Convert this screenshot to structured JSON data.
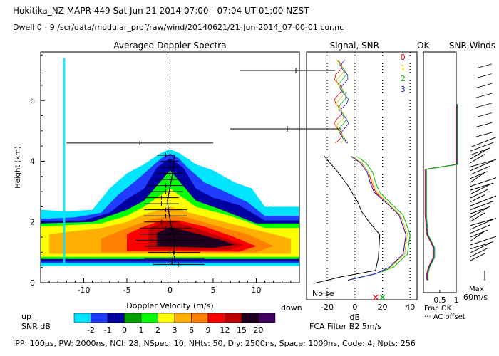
{
  "header": {
    "title": "Hokitika_NZ   MAPR-449   Sat Jun 21 2014 07:00 - 07:04 UT 01:00 NZST",
    "path": "Dwell   0 - 9   /scr/data/modular_prof/raw/wind/20140621/21-Jun-2014_07-00-01.cor.nc"
  },
  "footer": {
    "params": "IPP: 100µs,   PW: 2000ns,   NCI: 28,   NSpec: 10,   NHts: 50,   Dly: 2500ns,   Space: 1000ns,   Code: 4,   Npts: 256"
  },
  "labels": {
    "snr_db": "SNR dB",
    "up": "up",
    "down": "down",
    "fca": "FCA Filter B2   5m/s",
    "noise": "Noise",
    "frac_ok": "Frac OK",
    "ac_offset": "··· AC offset",
    "max": "Max",
    "max_val": "60m/s",
    "ok": "OK"
  },
  "colors": {
    "snr_scale": [
      "#00e5ff",
      "#1f3cff",
      "#0000a0",
      "#00a000",
      "#00ff00",
      "#ffff00",
      "#ffb000",
      "#ff8000",
      "#ff0000",
      "#c00000",
      "#200020",
      "#400060"
    ],
    "channels": [
      "#ff0000",
      "#e0c000",
      "#00c000",
      "#2020d0"
    ]
  },
  "chart_data": [
    {
      "type": "heatmap",
      "title": "Averaged Doppler Spectra",
      "xlabel": "Doppler Velocity (m/s)",
      "ylabel": "Height (km)",
      "xlim": [
        -15,
        15
      ],
      "ylim": [
        0,
        7.6
      ],
      "xticks": [
        -10,
        -5,
        0,
        5,
        10
      ],
      "yticks": [
        0,
        2,
        4,
        6
      ],
      "colorbar": {
        "label": "SNR dB",
        "ticks": [
          -2,
          -1,
          0,
          1,
          2,
          3,
          6,
          9,
          12,
          15,
          20
        ]
      },
      "contours": [
        {
          "level": -2,
          "pts": [
            [
              -15,
              0.55
            ],
            [
              -15,
              2.4
            ],
            [
              -12,
              2.35
            ],
            [
              -9,
              2.4
            ],
            [
              -7,
              3.1
            ],
            [
              -5,
              3.6
            ],
            [
              -3,
              3.9
            ],
            [
              -1.2,
              4.25
            ],
            [
              0,
              4.4
            ],
            [
              1.2,
              4.25
            ],
            [
              3,
              3.9
            ],
            [
              5,
              3.7
            ],
            [
              7.5,
              3.3
            ],
            [
              9.5,
              3.1
            ],
            [
              11,
              2.5
            ],
            [
              15,
              2.5
            ],
            [
              15,
              0.55
            ]
          ]
        },
        {
          "level": -1,
          "pts": [
            [
              -15,
              0.65
            ],
            [
              -15,
              2.1
            ],
            [
              -11,
              2.15
            ],
            [
              -8,
              2.3
            ],
            [
              -6,
              2.9
            ],
            [
              -4,
              3.35
            ],
            [
              -2,
              3.85
            ],
            [
              -1,
              4.1
            ],
            [
              0,
              4.25
            ],
            [
              1,
              4.1
            ],
            [
              2,
              3.8
            ],
            [
              4,
              3.3
            ],
            [
              6,
              3.05
            ],
            [
              9,
              2.65
            ],
            [
              11,
              2.2
            ],
            [
              15,
              2.2
            ],
            [
              15,
              0.65
            ]
          ]
        },
        {
          "level": 0,
          "pts": [
            [
              -15,
              0.7
            ],
            [
              -15,
              2.02
            ],
            [
              -10,
              2.05
            ],
            [
              -7,
              2.3
            ],
            [
              -5,
              2.75
            ],
            [
              -3,
              3.1
            ],
            [
              -1.5,
              3.8
            ],
            [
              0,
              4.1
            ],
            [
              1.5,
              3.8
            ],
            [
              3,
              3.1
            ],
            [
              5,
              2.8
            ],
            [
              8,
              2.55
            ],
            [
              11,
              2.05
            ],
            [
              15,
              2.05
            ],
            [
              15,
              0.7
            ]
          ]
        },
        {
          "level": 2,
          "pts": [
            [
              -15,
              0.78
            ],
            [
              -15,
              1.95
            ],
            [
              -9,
              2.0
            ],
            [
              -5,
              2.4
            ],
            [
              -3,
              2.7
            ],
            [
              -1.2,
              3.3
            ],
            [
              0,
              3.7
            ],
            [
              1.2,
              3.3
            ],
            [
              3,
              2.7
            ],
            [
              6,
              2.4
            ],
            [
              10,
              1.95
            ],
            [
              15,
              1.95
            ],
            [
              15,
              0.78
            ]
          ]
        },
        {
          "level": 3,
          "pts": [
            [
              -15,
              0.85
            ],
            [
              -15,
              1.85
            ],
            [
              -8,
              1.95
            ],
            [
              -5,
              2.2
            ],
            [
              -3,
              2.5
            ],
            [
              -1,
              2.9
            ],
            [
              0,
              3.1
            ],
            [
              1,
              2.9
            ],
            [
              3,
              2.5
            ],
            [
              7,
              2.2
            ],
            [
              11,
              1.8
            ],
            [
              15,
              1.8
            ],
            [
              15,
              0.85
            ]
          ]
        },
        {
          "level": 6,
          "pts": [
            [
              -14,
              0.95
            ],
            [
              -14,
              1.6
            ],
            [
              -8,
              1.8
            ],
            [
              -5,
              2.0
            ],
            [
              -3,
              2.25
            ],
            [
              0,
              2.5
            ],
            [
              3,
              2.25
            ],
            [
              7,
              1.95
            ],
            [
              12,
              1.6
            ],
            [
              14,
              1.45
            ],
            [
              14,
              0.95
            ]
          ]
        },
        {
          "level": 9,
          "pts": [
            [
              -8,
              1.0
            ],
            [
              -8,
              1.45
            ],
            [
              -5,
              1.8
            ],
            [
              -2,
              2.1
            ],
            [
              0,
              2.2
            ],
            [
              2,
              2.15
            ],
            [
              5,
              1.9
            ],
            [
              9,
              1.6
            ],
            [
              12,
              1.2
            ],
            [
              10,
              1.0
            ]
          ]
        },
        {
          "level": 12,
          "pts": [
            [
              -5,
              1.05
            ],
            [
              -5,
              1.6
            ],
            [
              -3,
              1.85
            ],
            [
              -1,
              2.05
            ],
            [
              1,
              2.05
            ],
            [
              4,
              1.85
            ],
            [
              7,
              1.55
            ],
            [
              10,
              1.2
            ],
            [
              8,
              1.02
            ]
          ]
        },
        {
          "level": 15,
          "pts": [
            [
              -2.5,
              1.1
            ],
            [
              -2.5,
              1.8
            ],
            [
              -1,
              1.98
            ],
            [
              1,
              1.98
            ],
            [
              3.5,
              1.75
            ],
            [
              6,
              1.5
            ],
            [
              8.5,
              1.25
            ],
            [
              7,
              1.08
            ]
          ]
        },
        {
          "level": 20,
          "pts": [
            [
              -1.5,
              1.2
            ],
            [
              -1.5,
              1.65
            ],
            [
              0,
              1.82
            ],
            [
              2,
              1.7
            ],
            [
              4,
              1.55
            ],
            [
              6,
              1.4
            ],
            [
              7.5,
              1.25
            ],
            [
              5,
              1.15
            ]
          ]
        }
      ],
      "profile_v": [
        [
          0.2,
          0.6
        ],
        [
          0.3,
          0.8
        ],
        [
          0.4,
          1.0
        ],
        [
          0.6,
          1.3
        ],
        [
          0.5,
          1.5
        ],
        [
          0.3,
          1.7
        ],
        [
          0.1,
          1.9
        ],
        [
          0.0,
          2.1
        ],
        [
          -0.2,
          2.4
        ],
        [
          -0.3,
          2.7
        ],
        [
          -0.1,
          3.0
        ],
        [
          0.1,
          3.3
        ],
        [
          0.3,
          3.6
        ],
        [
          0.4,
          3.9
        ],
        [
          0.5,
          4.2
        ]
      ],
      "error_bars": [
        [
          1.0,
          0.6,
          3.0
        ],
        [
          0.5,
          0.8,
          3.5
        ],
        [
          0.5,
          1.0,
          3.0
        ],
        [
          0.5,
          1.2,
          3.5
        ],
        [
          0.0,
          1.4,
          4.0
        ],
        [
          0.0,
          1.6,
          3.5
        ],
        [
          -0.5,
          1.8,
          3.0
        ],
        [
          -1.0,
          2.0,
          2.0
        ],
        [
          -0.5,
          2.2,
          2.5
        ],
        [
          -0.5,
          2.4,
          2.5
        ],
        [
          -1.0,
          2.6,
          2.0
        ],
        [
          -1.0,
          2.8,
          2.0
        ],
        [
          -0.5,
          3.0,
          2.0
        ],
        [
          -0.5,
          3.2,
          2.0
        ],
        [
          0.0,
          3.4,
          1.5
        ],
        [
          0.0,
          3.6,
          1.5
        ],
        [
          0.0,
          3.8,
          1.0
        ],
        [
          0.0,
          4.0,
          1.0
        ],
        [
          -0.5,
          4.2,
          1.0
        ],
        [
          -3.5,
          4.6,
          8.5
        ]
      ]
    },
    {
      "type": "line",
      "title": "Signal, SNR",
      "xlabel": "dB",
      "xlim": [
        -35,
        45
      ],
      "ylim": [
        0,
        7.6
      ],
      "xticks": [
        -20,
        0,
        20,
        40
      ],
      "series": [
        {
          "name": "0",
          "points": [
            [
              -5,
              0.6
            ],
            [
              15,
              0.8
            ],
            [
              25,
              1.0
            ],
            [
              35,
              1.4
            ],
            [
              37,
              2.0
            ],
            [
              32,
              2.6
            ],
            [
              22,
              3.0
            ],
            [
              15,
              3.3
            ],
            [
              12,
              3.6
            ],
            [
              10,
              3.9
            ],
            [
              5,
              4.2
            ],
            [
              -2,
              4.4
            ]
          ]
        },
        {
          "name": "1",
          "points": [
            [
              -5,
              0.6
            ],
            [
              15,
              0.8
            ],
            [
              26,
              1.0
            ],
            [
              36,
              1.4
            ],
            [
              38,
              2.0
            ],
            [
              33,
              2.6
            ],
            [
              23,
              3.0
            ],
            [
              16,
              3.3
            ],
            [
              13,
              3.6
            ],
            [
              10,
              3.9
            ],
            [
              5,
              4.2
            ],
            [
              -2,
              4.4
            ]
          ]
        },
        {
          "name": "2",
          "points": [
            [
              -5,
              0.6
            ],
            [
              15,
              0.8
            ],
            [
              28,
              1.0
            ],
            [
              38,
              1.4
            ],
            [
              40,
              2.0
            ],
            [
              35,
              2.6
            ],
            [
              25,
              3.0
            ],
            [
              18,
              3.3
            ],
            [
              15,
              3.6
            ],
            [
              13,
              3.9
            ],
            [
              8,
              4.2
            ],
            [
              1,
              4.4
            ]
          ]
        },
        {
          "name": "3",
          "points": [
            [
              -5,
              0.6
            ],
            [
              15,
              0.8
            ],
            [
              25,
              1.0
            ],
            [
              35,
              1.4
            ],
            [
              37,
              2.0
            ],
            [
              32,
              2.6
            ],
            [
              22,
              3.0
            ],
            [
              14,
              3.3
            ],
            [
              11,
              3.6
            ],
            [
              9,
              3.9
            ],
            [
              4,
              4.2
            ],
            [
              -3,
              4.4
            ]
          ]
        },
        {
          "name": "signal",
          "points": [
            [
              -30,
              0.5
            ],
            [
              -10,
              0.7
            ],
            [
              15,
              0.9
            ],
            [
              17,
              1.3
            ],
            [
              18,
              2.0
            ],
            [
              10,
              2.4
            ],
            [
              5,
              2.7
            ],
            [
              2,
              3.0
            ],
            [
              -5,
              3.5
            ],
            [
              -12,
              3.9
            ],
            [
              -18,
              4.2
            ],
            [
              -22,
              4.4
            ]
          ]
        }
      ],
      "noise_x": [
        15,
        20
      ],
      "legend": [
        "0",
        "1",
        "2",
        "3"
      ]
    },
    {
      "type": "line",
      "title": "OK SNR,Winds",
      "xlabel": "Frac OK",
      "xlim": [
        0,
        1
      ],
      "xticks": [
        0.5,
        1
      ],
      "xtick_labels": [
        "0.5",
        "1"
      ],
      "frac_ok": [
        [
          0.1,
          0.6
        ],
        [
          0.1,
          0.8
        ],
        [
          0.15,
          1.0
        ],
        [
          0.3,
          1.3
        ],
        [
          0.3,
          1.6
        ],
        [
          0.1,
          2.0
        ],
        [
          0.05,
          2.6
        ],
        [
          0.05,
          3.4
        ],
        [
          0.05,
          4.0
        ],
        [
          1.0,
          4.15
        ],
        [
          1.0,
          6.0
        ]
      ]
    }
  ]
}
